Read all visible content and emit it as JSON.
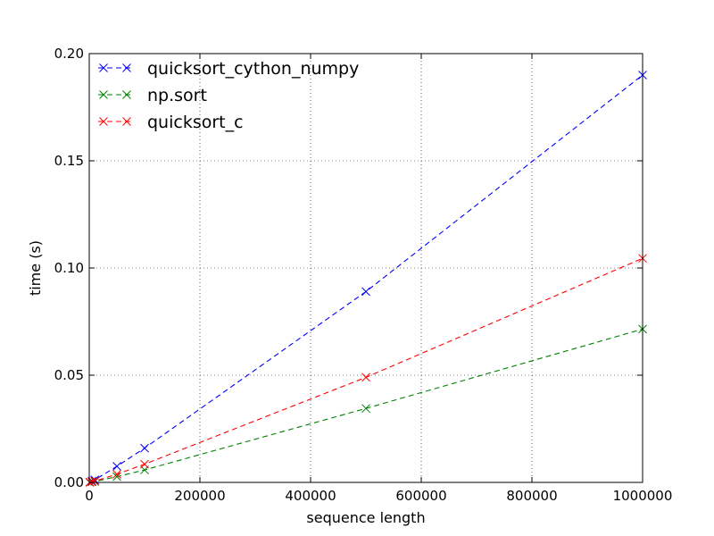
{
  "chart_data": {
    "type": "line",
    "title": "",
    "xlabel": "sequence length",
    "ylabel": "time (s)",
    "xlim": [
      0,
      1000000
    ],
    "ylim": [
      0,
      0.2
    ],
    "xticks": [
      0,
      200000,
      400000,
      600000,
      800000,
      1000000
    ],
    "xtick_labels": [
      "0",
      "200000",
      "400000",
      "600000",
      "800000",
      "1000000"
    ],
    "yticks": [
      0,
      0.05,
      0.1,
      0.15,
      0.2
    ],
    "ytick_labels": [
      "0.00",
      "0.05",
      "0.10",
      "0.15",
      "0.20"
    ],
    "grid": true,
    "legend_position": "top-left",
    "series": [
      {
        "name": "quicksort_cython_numpy",
        "color": "#0000ff",
        "x": [
          1000,
          5000,
          10000,
          50000,
          100000,
          500000,
          1000000
        ],
        "y": [
          0.0001,
          0.0006,
          0.0012,
          0.0075,
          0.016,
          0.089,
          0.19
        ]
      },
      {
        "name": "np.sort",
        "color": "#008000",
        "x": [
          1000,
          5000,
          10000,
          50000,
          100000,
          500000,
          1000000
        ],
        "y": [
          5e-05,
          0.0002,
          0.0004,
          0.0027,
          0.0058,
          0.0345,
          0.0715
        ]
      },
      {
        "name": "quicksort_c",
        "color": "#ff0000",
        "x": [
          1000,
          5000,
          10000,
          50000,
          100000,
          500000,
          1000000
        ],
        "y": [
          6e-05,
          0.0003,
          0.0006,
          0.0038,
          0.0085,
          0.049,
          0.1045
        ]
      }
    ]
  }
}
